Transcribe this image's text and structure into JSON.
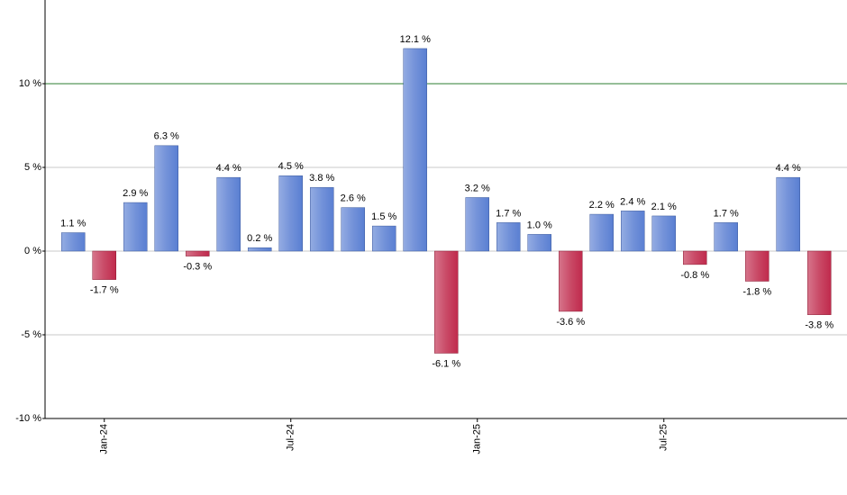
{
  "chart_data": {
    "type": "bar",
    "categories": [
      null,
      "Jan-24",
      null,
      null,
      null,
      null,
      null,
      "Jul-24",
      null,
      null,
      null,
      null,
      null,
      "Jan-25",
      null,
      null,
      null,
      null,
      null,
      "Jul-25",
      null,
      null,
      null,
      null,
      null
    ],
    "values": [
      1.1,
      -1.7,
      2.9,
      6.3,
      -0.3,
      4.4,
      0.2,
      4.5,
      3.8,
      2.6,
      1.5,
      12.1,
      -6.1,
      3.2,
      1.7,
      1.0,
      -3.6,
      2.2,
      2.4,
      2.1,
      -0.8,
      1.7,
      -1.8,
      4.4,
      -3.8
    ],
    "value_labels": [
      "1.1 %",
      "-1.7 %",
      "2.9 %",
      "6.3 %",
      "-0.3 %",
      "4.4 %",
      "0.2 %",
      "4.5 %",
      "3.8 %",
      "2.6 %",
      "1.5 %",
      "12.1 %",
      "-6.1 %",
      "3.2 %",
      "1.7 %",
      "1.0 %",
      "-3.6 %",
      "2.2 %",
      "2.4 %",
      "2.1 %",
      "-0.8 %",
      "1.7 %",
      "-1.8 %",
      "4.4 %",
      "-3.8 %"
    ],
    "positive_color": "#5a7fd2",
    "negative_color": "#c02a4c",
    "ylim": [
      -10,
      15
    ],
    "yticks": [
      {
        "value": -10,
        "label": "-10 %"
      },
      {
        "value": -5,
        "label": "-5 %"
      },
      {
        "value": 0,
        "label": "0 %"
      },
      {
        "value": 5,
        "label": "5 %"
      },
      {
        "value": 10,
        "label": "10 %"
      }
    ],
    "grid": true,
    "reference_line": {
      "value": 10,
      "color": "#2e7d32"
    }
  }
}
